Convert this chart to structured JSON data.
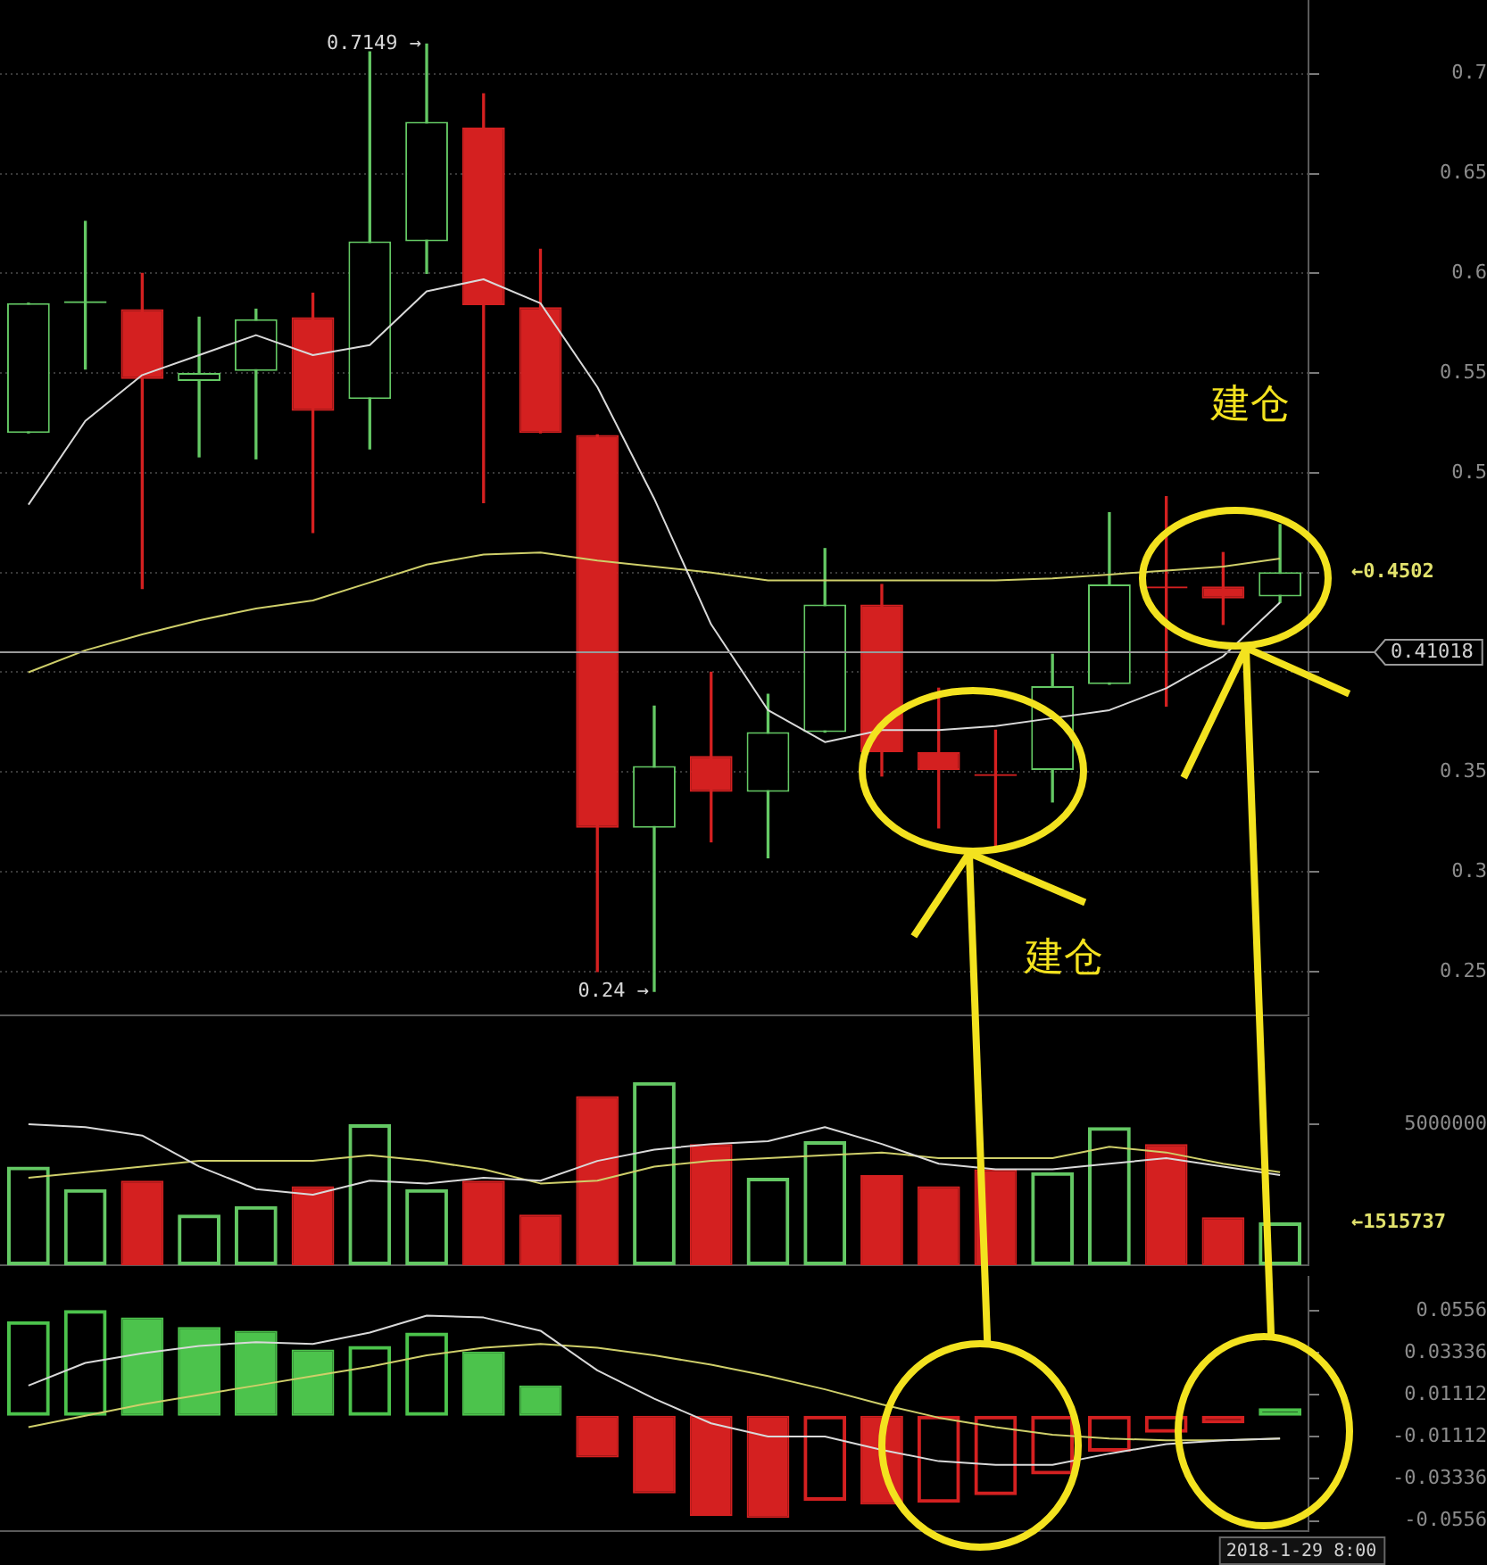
{
  "chart_data": [
    {
      "type": "candlestick",
      "categories": [
        null,
        null,
        null,
        null,
        null,
        null,
        null,
        null,
        null,
        null,
        null,
        null,
        null,
        null,
        null,
        null,
        null,
        null,
        null,
        null,
        null,
        null,
        null
      ],
      "ohlc": [
        [
          0.52,
          0.585,
          0.52,
          0.585
        ],
        [
          0.585,
          0.626,
          0.552,
          0.586
        ],
        [
          0.582,
          0.6,
          0.442,
          0.547
        ],
        [
          0.546,
          0.578,
          0.508,
          0.55
        ],
        [
          0.551,
          0.582,
          0.507,
          0.577
        ],
        [
          0.578,
          0.59,
          0.47,
          0.531
        ],
        [
          0.537,
          0.711,
          0.512,
          0.616
        ],
        [
          0.616,
          0.7149,
          0.6,
          0.676
        ],
        [
          0.673,
          0.69,
          0.485,
          0.584
        ],
        [
          0.583,
          0.612,
          0.52,
          0.52
        ],
        [
          0.519,
          0.519,
          0.25,
          0.322
        ],
        [
          0.322,
          0.383,
          0.24,
          0.353
        ],
        [
          0.358,
          0.4,
          0.315,
          0.34
        ],
        [
          0.34,
          0.389,
          0.307,
          0.37
        ],
        [
          0.37,
          0.462,
          0.37,
          0.434
        ],
        [
          0.434,
          0.444,
          0.348,
          0.36
        ],
        [
          0.36,
          0.392,
          0.322,
          0.351
        ],
        [
          0.349,
          0.371,
          0.313,
          0.348
        ],
        [
          0.351,
          0.409,
          0.335,
          0.393
        ],
        [
          0.394,
          0.48,
          0.394,
          0.444
        ],
        [
          0.443,
          0.488,
          0.383,
          0.442
        ],
        [
          0.443,
          0.46,
          0.424,
          0.437
        ],
        [
          0.438,
          0.474,
          0.435,
          0.4502
        ]
      ],
      "colors": [
        "#64c864",
        "#64c864",
        "#d42020",
        "#64c864",
        "#64c864",
        "#d42020",
        "#64c864",
        "#64c864",
        "#d42020",
        "#d42020",
        "#d42020",
        "#64c864",
        "#d42020",
        "#64c864",
        "#64c864",
        "#d42020",
        "#d42020",
        "#d42020",
        "#64c864",
        "#64c864",
        "#d42020",
        "#d42020",
        "#64c864"
      ],
      "series": [
        {
          "type": "line",
          "color": "#d9d9d9",
          "values": [
            0.484,
            0.526,
            0.549,
            0.559,
            0.569,
            0.559,
            0.564,
            0.591,
            0.597,
            0.585,
            0.543,
            0.487,
            0.424,
            0.381,
            0.365,
            0.371,
            0.371,
            0.373,
            0.377,
            0.381,
            0.392,
            0.408,
            0.435
          ]
        },
        {
          "type": "line",
          "color": "#cfcf6a",
          "values": [
            0.4,
            0.411,
            0.419,
            0.426,
            0.432,
            0.436,
            0.445,
            0.454,
            0.459,
            0.46,
            0.456,
            0.453,
            0.45,
            0.446,
            0.446,
            0.446,
            0.446,
            0.446,
            0.447,
            0.449,
            0.451,
            0.453,
            0.457
          ]
        }
      ],
      "ylim": [
        0.228,
        0.737
      ],
      "yticks": [
        0.25,
        0.3,
        0.35,
        {
          "value": 0.4,
          "label": null
        },
        {
          "value": 0.45,
          "label": null
        },
        0.5,
        0.55,
        0.6,
        0.65,
        0.7
      ],
      "grid": "y",
      "tick_labels": "y",
      "ref_lines": [
        {
          "axis": "y",
          "value": 0.41018,
          "label": "0.41018",
          "color": "#9a9a9a"
        }
      ],
      "annotations": [
        "0.7149 →",
        "0.24 →",
        "←0.4502",
        "建仓",
        "建仓"
      ]
    },
    {
      "type": "bar",
      "categories": [
        null,
        null,
        null,
        null,
        null,
        null,
        null,
        null,
        null,
        null,
        null,
        null,
        null,
        null,
        null,
        null,
        null,
        null,
        null,
        null,
        null,
        null,
        null
      ],
      "series": [
        {
          "type": "bar",
          "values": [
            3500000,
            2700000,
            3000000,
            1800000,
            2100000,
            2800000,
            5000000,
            2700000,
            3000000,
            1800000,
            6000000,
            6500000,
            4300000,
            3100000,
            4400000,
            3200000,
            2800000,
            3400000,
            3300000,
            4900000,
            4300000,
            1700000,
            1515737
          ],
          "colors": [
            "#64c864",
            "#64c864",
            "#d42020",
            "#64c864",
            "#64c864",
            "#d42020",
            "#64c864",
            "#64c864",
            "#d42020",
            "#d42020",
            "#d42020",
            "#64c864",
            "#d42020",
            "#64c864",
            "#64c864",
            "#d42020",
            "#d42020",
            "#d42020",
            "#64c864",
            "#64c864",
            "#d42020",
            "#d42020",
            "#64c864"
          ]
        },
        {
          "type": "line",
          "color": "#d9d9d9",
          "values": [
            5000000,
            4900000,
            4600000,
            3500000,
            2700000,
            2500000,
            3000000,
            2900000,
            3100000,
            3000000,
            3700000,
            4100000,
            4300000,
            4400000,
            4900000,
            4300000,
            3600000,
            3400000,
            3400000,
            3600000,
            3800000,
            3500000,
            3200000
          ]
        },
        {
          "type": "line",
          "color": "#cfcf6a",
          "values": [
            3100000,
            3300000,
            3500000,
            3700000,
            3700000,
            3700000,
            3900000,
            3700000,
            3400000,
            2900000,
            3000000,
            3500000,
            3700000,
            3800000,
            3900000,
            4000000,
            3800000,
            3800000,
            3800000,
            4200000,
            4000000,
            3600000,
            3300000
          ]
        }
      ],
      "ylim": [
        0,
        8800000
      ],
      "yticks": [
        5000000
      ],
      "tick_labels": "y",
      "annotations": [
        "←1515737"
      ]
    },
    {
      "type": "bar",
      "categories": [
        null,
        null,
        null,
        null,
        null,
        null,
        null,
        null,
        null,
        null,
        null,
        null,
        null,
        null,
        null,
        null,
        null,
        null,
        null,
        null,
        null,
        null,
        null
      ],
      "series": [
        {
          "type": "bar",
          "values": [
            0.05,
            0.056,
            0.052,
            0.047,
            0.045,
            0.035,
            0.037,
            0.044,
            0.034,
            0.016,
            -0.022,
            -0.041,
            -0.053,
            -0.054,
            -0.045,
            -0.047,
            -0.046,
            -0.042,
            -0.031,
            -0.019,
            -0.009,
            -0.004,
            0.004
          ],
          "colors": [
            "#4cc34c",
            "#4cc34c",
            "#4cc34c",
            "#4cc34c",
            "#4cc34c",
            "#4cc34c",
            "#4cc34c",
            "#4cc34c",
            "#4cc34c",
            "#4cc34c",
            "#d42020",
            "#d42020",
            "#d42020",
            "#d42020",
            "#d42020",
            "#d42020",
            "#d42020",
            "#d42020",
            "#d42020",
            "#d42020",
            "#d42020",
            "#d42020",
            "#4cc34c"
          ]
        },
        {
          "type": "line",
          "color": "#d9d9d9",
          "values": [
            0.016,
            0.028,
            0.033,
            0.037,
            0.039,
            0.038,
            0.044,
            0.053,
            0.052,
            0.045,
            0.024,
            0.009,
            -0.004,
            -0.011,
            -0.011,
            -0.018,
            -0.024,
            -0.026,
            -0.026,
            -0.02,
            -0.015,
            -0.013,
            -0.012
          ]
        },
        {
          "type": "line",
          "color": "#cfcf6a",
          "values": [
            -0.006,
            0,
            0.006,
            0.011,
            0.016,
            0.021,
            0.026,
            0.032,
            0.036,
            0.038,
            0.036,
            0.032,
            0.027,
            0.021,
            0.014,
            0.006,
            -0.001,
            -0.006,
            -0.01,
            -0.012,
            -0.013,
            -0.013,
            -0.012
          ]
        }
      ],
      "ylim": [
        -0.061,
        0.074
      ],
      "yticks": [
        -0.0556,
        -0.03336,
        -0.01112,
        0.01112,
        0.03336,
        0.0556
      ],
      "tick_labels": "y",
      "annotations": [
        "2018-1-29 8:00"
      ]
    }
  ]
}
